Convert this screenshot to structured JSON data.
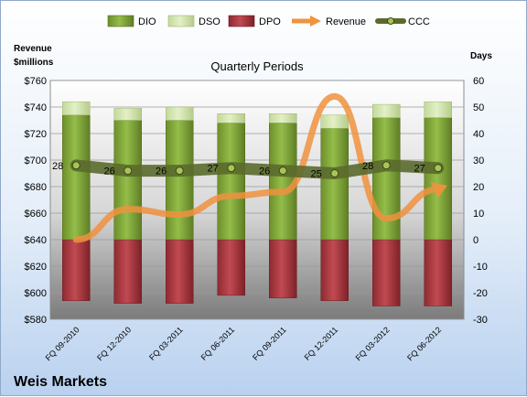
{
  "chart_data": {
    "type": "bar",
    "title": "Quarterly Periods",
    "company": "Weis Markets",
    "left_axis_label_1": "Revenue",
    "left_axis_label_2": "$millions",
    "right_axis_label": "Days",
    "categories": [
      "FQ 09-2010",
      "FQ 12-2010",
      "FQ 03-2011",
      "FQ 06-2011",
      "FQ 09-2011",
      "FQ 12-2011",
      "FQ 03-2012",
      "FQ 06-2012"
    ],
    "left_axis": {
      "min": 580,
      "max": 760,
      "step": 20,
      "ticks": [
        "$580",
        "$600",
        "$620",
        "$640",
        "$660",
        "$680",
        "$700",
        "$720",
        "$740",
        "$760"
      ]
    },
    "right_axis": {
      "min": -30,
      "max": 60,
      "step": 10,
      "ticks": [
        "-30",
        "-20",
        "-10",
        "0",
        "10",
        "20",
        "30",
        "40",
        "50",
        "60"
      ]
    },
    "series": [
      {
        "name": "DIO",
        "axis": "right",
        "stacked": true,
        "color": "#7ea234",
        "values": [
          47,
          45,
          45,
          44,
          44,
          42,
          46,
          46
        ]
      },
      {
        "name": "DSO",
        "axis": "right",
        "stacked": true,
        "color": "#cfe3a4",
        "values": [
          5,
          4.5,
          5,
          3.5,
          3.5,
          5,
          5,
          6
        ]
      },
      {
        "name": "DPO",
        "axis": "right",
        "stacked": false,
        "negative": true,
        "color": "#a8323a",
        "values": [
          -23,
          -24,
          -24,
          -21,
          -22,
          -23,
          -25,
          -25
        ]
      },
      {
        "name": "Revenue",
        "axis": "left",
        "type": "line",
        "color": "#f0923e",
        "values": [
          640,
          663,
          659,
          673,
          676,
          748,
          656,
          678
        ]
      },
      {
        "name": "CCC",
        "axis": "right",
        "type": "line",
        "color": "#5a6a2c",
        "values": [
          28,
          26,
          26,
          27,
          26,
          25,
          28,
          27
        ],
        "labels": [
          "28",
          "26",
          "26",
          "27",
          "26",
          "25",
          "28",
          "27"
        ]
      }
    ],
    "legend": {
      "position": "top",
      "items": [
        "DIO",
        "DSO",
        "DPO",
        "Revenue",
        "CCC"
      ]
    },
    "grid": true
  }
}
